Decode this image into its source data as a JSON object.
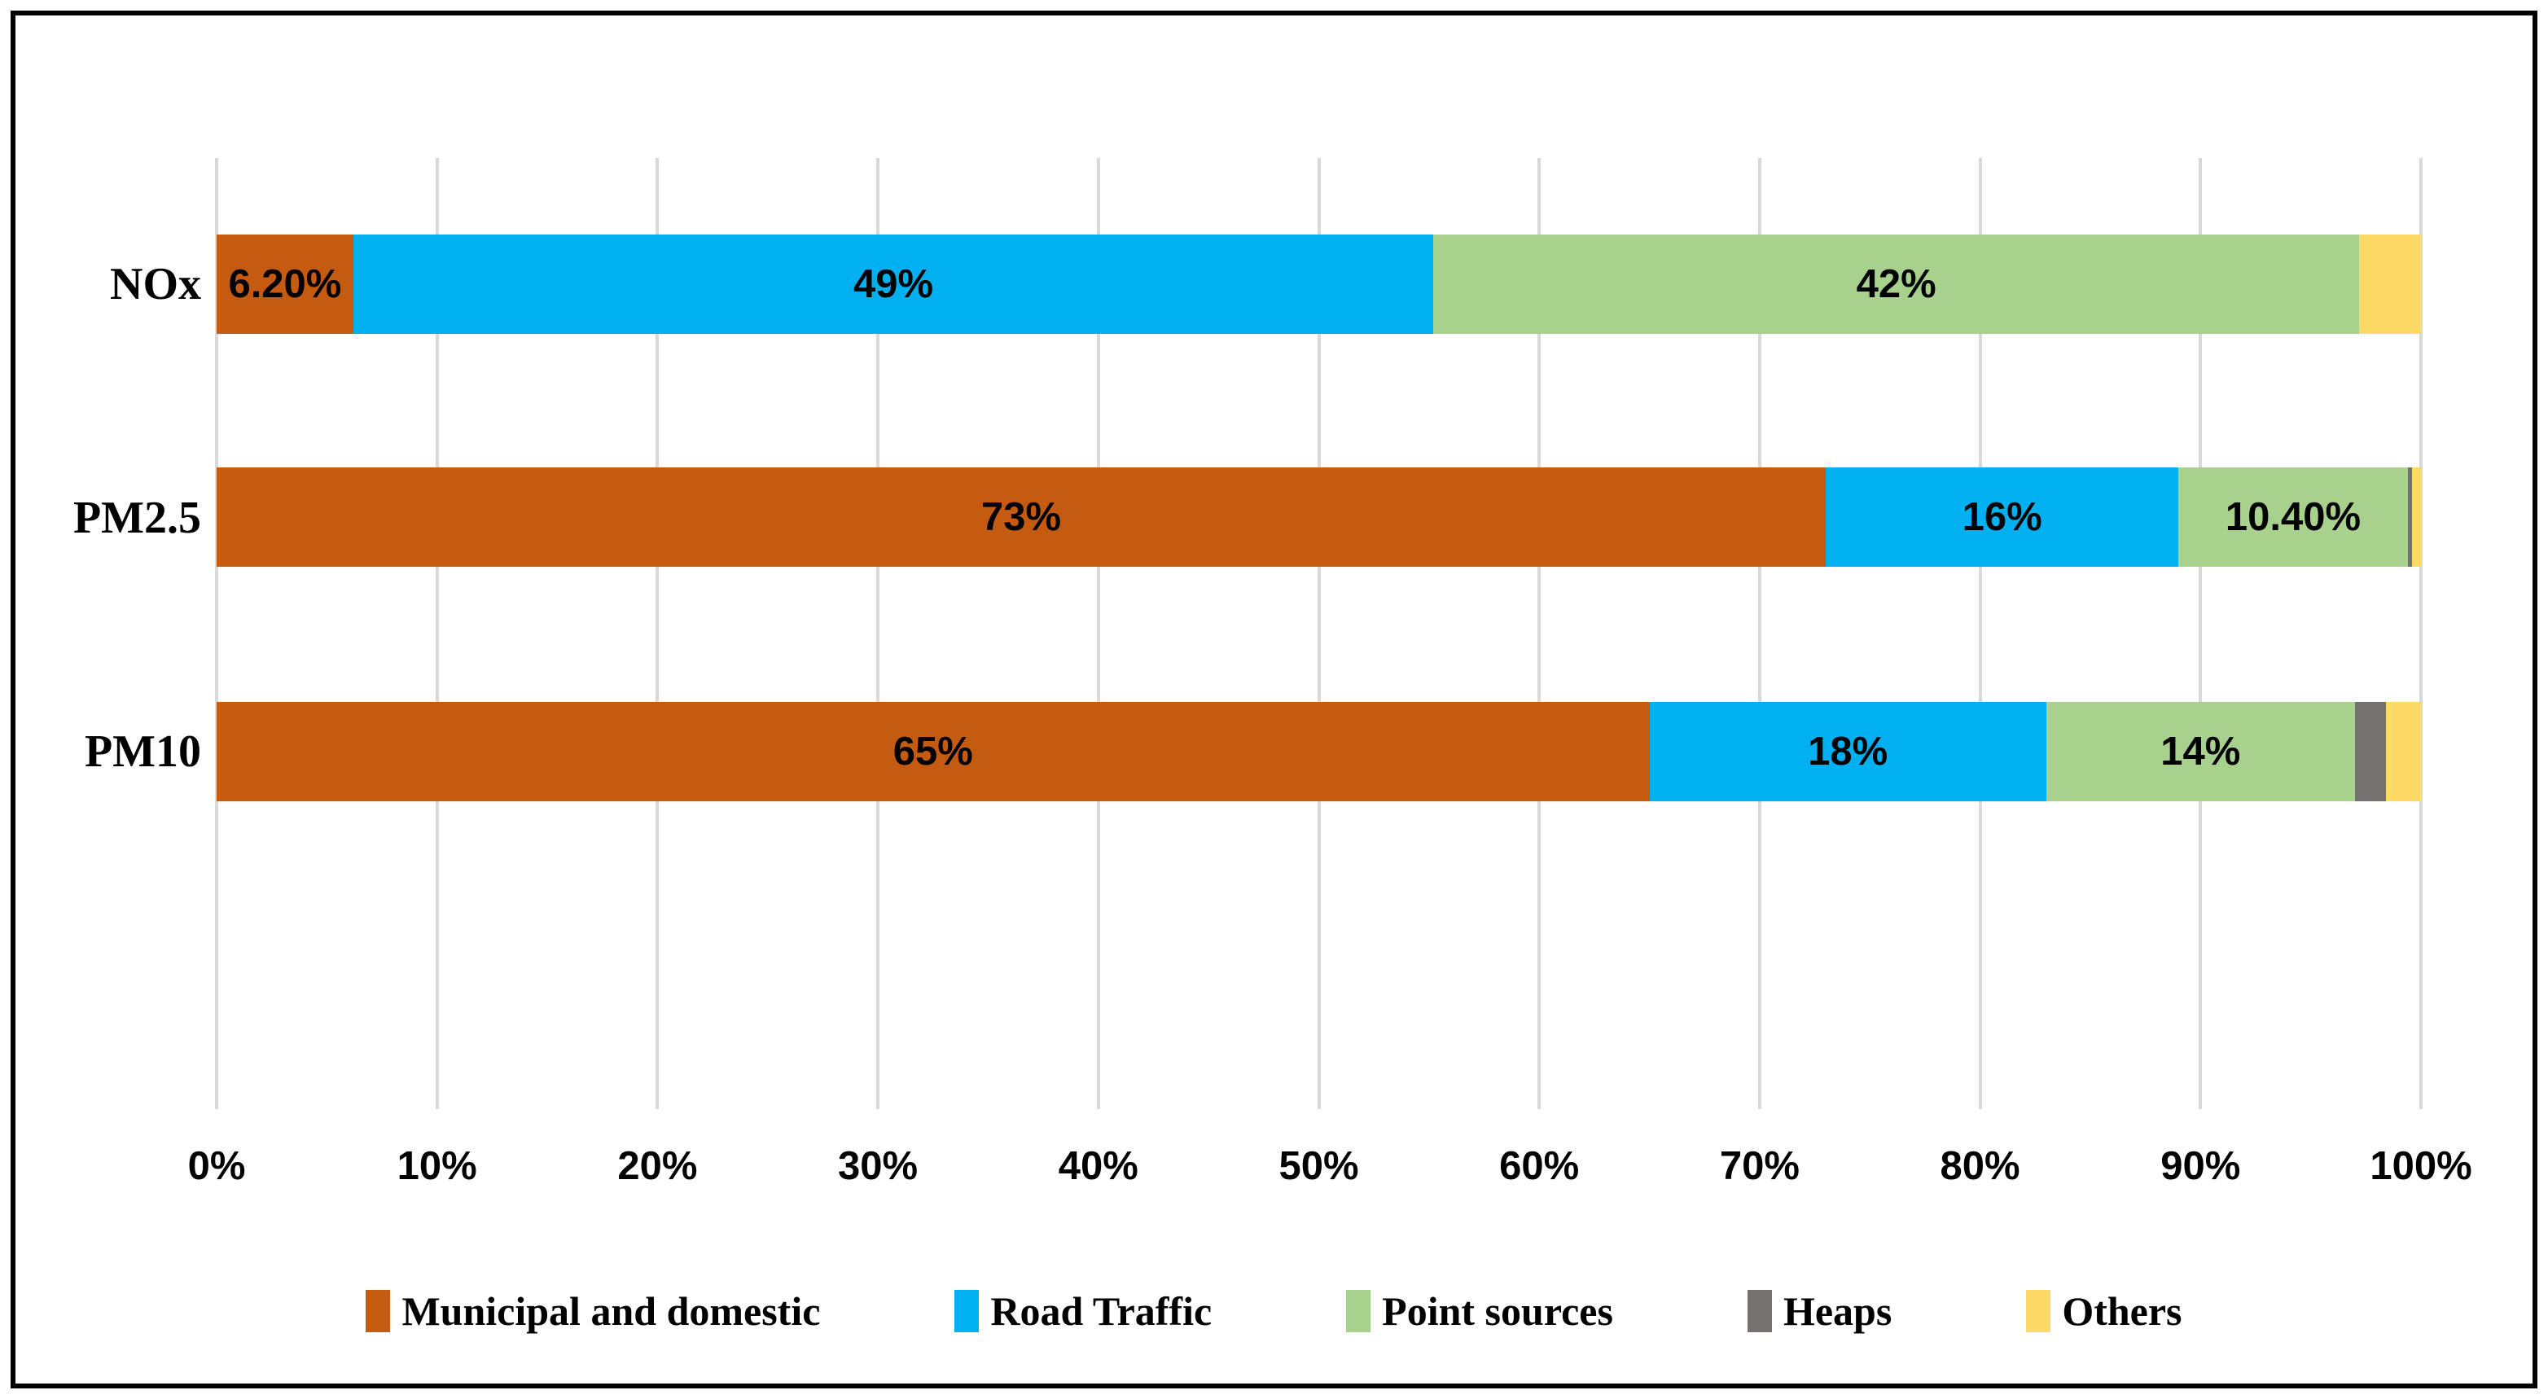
{
  "chart_data": {
    "type": "bar",
    "orientation": "horizontal",
    "stacked": true,
    "title": "",
    "xlabel": "",
    "ylabel": "",
    "grid": "vertical",
    "gridline_color": "#D9D9D9",
    "legend_position": "bottom",
    "x_axis": {
      "min": 0,
      "max": 100,
      "tick_step": 10,
      "ticks": [
        "0%",
        "10%",
        "20%",
        "30%",
        "40%",
        "50%",
        "60%",
        "70%",
        "80%",
        "90%",
        "100%"
      ]
    },
    "categories": [
      "NOx",
      "PM2.5",
      "PM10"
    ],
    "series": [
      {
        "name": "Municipal and domestic",
        "color": "#C55A11",
        "values": [
          6.2,
          73,
          65
        ],
        "labels": [
          "6.20%",
          "73%",
          "65%"
        ]
      },
      {
        "name": "Road Traffic",
        "color": "#00B0F0",
        "values": [
          49,
          16,
          18
        ],
        "labels": [
          "49%",
          "16%",
          "18%"
        ]
      },
      {
        "name": "Point sources",
        "color": "#A9D18E",
        "values": [
          42,
          10.4,
          14
        ],
        "labels": [
          "42%",
          "10.40%",
          "14%"
        ]
      },
      {
        "name": "Heaps",
        "color": "#767171",
        "values": [
          0,
          0.2,
          1.4
        ],
        "labels": [
          "",
          "",
          ""
        ]
      },
      {
        "name": "Others",
        "color": "#FFD966",
        "values": [
          2.8,
          0.4,
          1.6
        ],
        "labels": [
          "",
          "",
          ""
        ]
      }
    ]
  },
  "frame": {
    "background": "#FFFFFF",
    "border_color": "#000000"
  }
}
